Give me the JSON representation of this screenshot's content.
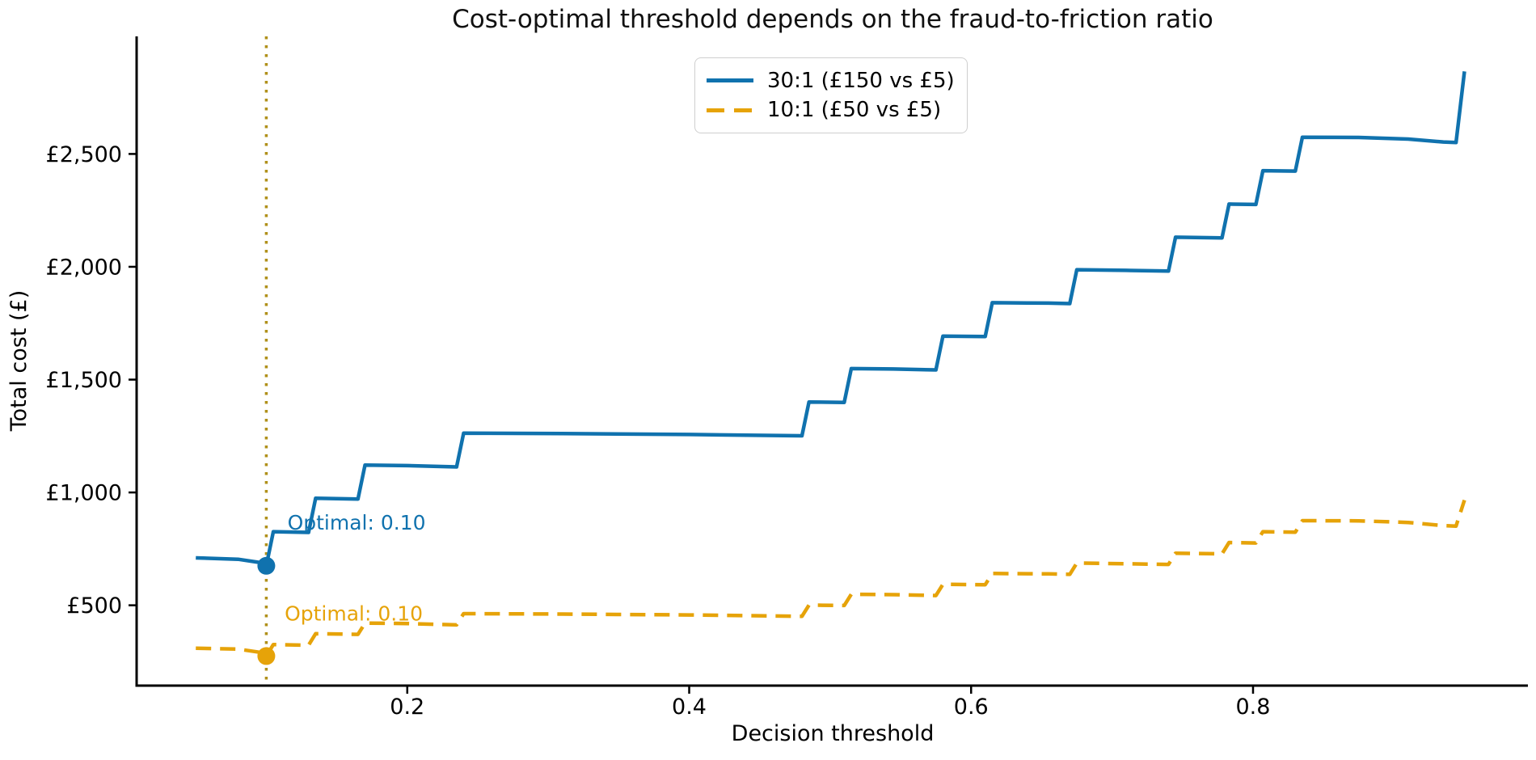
{
  "chart_data": {
    "type": "line",
    "title": "Cost-optimal threshold depends on the fraud-to-friction ratio",
    "xlabel": "Decision threshold",
    "ylabel": "Total cost (£)",
    "xlim": [
      0.008,
      0.995
    ],
    "ylim": [
      144,
      3021
    ],
    "grid": false,
    "x_ticks": {
      "values": [
        0.2,
        0.4,
        0.6,
        0.8
      ],
      "labels": [
        "0.2",
        "0.4",
        "0.6",
        "0.8"
      ]
    },
    "y_ticks": {
      "values": [
        500,
        1000,
        1500,
        2000,
        2500
      ],
      "labels": [
        "£500",
        "£1,000",
        "£1,500",
        "£2,000",
        "£2,500"
      ]
    },
    "legend": {
      "position": "upper center",
      "entries": [
        "30:1 (£150 vs £5)",
        "10:1 (£50 vs £5)"
      ]
    },
    "series": [
      {
        "name": "30:1 (£150 vs £5)",
        "color": "#1072ae",
        "line_style": "solid",
        "line_width": 4.5,
        "points": [
          [
            0.05,
            710
          ],
          [
            0.08,
            704
          ],
          [
            0.095,
            690
          ],
          [
            0.1,
            675
          ],
          [
            0.105,
            826
          ],
          [
            0.13,
            823
          ],
          [
            0.135,
            974
          ],
          [
            0.165,
            971
          ],
          [
            0.17,
            1121
          ],
          [
            0.2,
            1119
          ],
          [
            0.235,
            1113
          ],
          [
            0.24,
            1263
          ],
          [
            0.31,
            1261
          ],
          [
            0.4,
            1257
          ],
          [
            0.48,
            1251
          ],
          [
            0.485,
            1401
          ],
          [
            0.51,
            1399
          ],
          [
            0.515,
            1549
          ],
          [
            0.545,
            1547
          ],
          [
            0.575,
            1543
          ],
          [
            0.58,
            1693
          ],
          [
            0.61,
            1691
          ],
          [
            0.615,
            1841
          ],
          [
            0.655,
            1839
          ],
          [
            0.67,
            1837
          ],
          [
            0.675,
            1987
          ],
          [
            0.71,
            1984
          ],
          [
            0.74,
            1981
          ],
          [
            0.745,
            2131
          ],
          [
            0.778,
            2128
          ],
          [
            0.783,
            2278
          ],
          [
            0.802,
            2276
          ],
          [
            0.807,
            2426
          ],
          [
            0.83,
            2424
          ],
          [
            0.835,
            2574
          ],
          [
            0.875,
            2573
          ],
          [
            0.91,
            2566
          ],
          [
            0.935,
            2553
          ],
          [
            0.944,
            2551
          ],
          [
            0.95,
            2866
          ]
        ]
      },
      {
        "name": "10:1 (£50 vs £5)",
        "color": "#e6a309",
        "line_style": "dashed",
        "line_width": 4.5,
        "points": [
          [
            0.05,
            310
          ],
          [
            0.08,
            306
          ],
          [
            0.095,
            292
          ],
          [
            0.1,
            275
          ],
          [
            0.105,
            326
          ],
          [
            0.13,
            323
          ],
          [
            0.135,
            374
          ],
          [
            0.165,
            371
          ],
          [
            0.17,
            421
          ],
          [
            0.2,
            419
          ],
          [
            0.235,
            413
          ],
          [
            0.24,
            463
          ],
          [
            0.31,
            461
          ],
          [
            0.4,
            457
          ],
          [
            0.48,
            451
          ],
          [
            0.485,
            501
          ],
          [
            0.51,
            499
          ],
          [
            0.515,
            549
          ],
          [
            0.545,
            547
          ],
          [
            0.575,
            543
          ],
          [
            0.58,
            593
          ],
          [
            0.61,
            591
          ],
          [
            0.615,
            641
          ],
          [
            0.655,
            639
          ],
          [
            0.67,
            637
          ],
          [
            0.675,
            687
          ],
          [
            0.71,
            684
          ],
          [
            0.74,
            681
          ],
          [
            0.745,
            731
          ],
          [
            0.778,
            728
          ],
          [
            0.783,
            778
          ],
          [
            0.802,
            776
          ],
          [
            0.807,
            826
          ],
          [
            0.83,
            824
          ],
          [
            0.835,
            875
          ],
          [
            0.875,
            874
          ],
          [
            0.91,
            867
          ],
          [
            0.935,
            853
          ],
          [
            0.944,
            851
          ],
          [
            0.95,
            966
          ]
        ]
      }
    ],
    "optimal_vline": {
      "x": 0.1,
      "color": "#b0901a",
      "line_style": "dotted"
    },
    "optimal_points": [
      {
        "series": "30:1 (£150 vs £5)",
        "x": 0.1,
        "y": 675,
        "color": "#1072ae"
      },
      {
        "series": "10:1 (£50 vs £5)",
        "x": 0.1,
        "y": 275,
        "color": "#e6a309"
      }
    ],
    "annotations": [
      {
        "text": "Optimal: 0.10",
        "x": 0.115,
        "y": 867,
        "color": "#1072ae"
      },
      {
        "text": "Optimal: 0.10",
        "x": 0.113,
        "y": 465,
        "color": "#e6a309"
      }
    ]
  }
}
